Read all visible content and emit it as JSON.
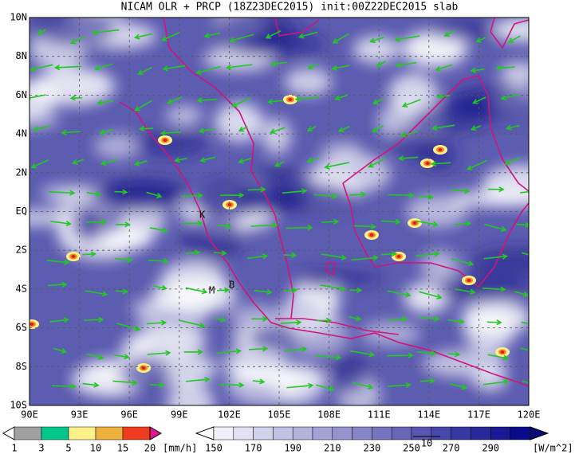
{
  "title": "NICAM OLR + PRCP (18Z23DEC2015) init:00Z22DEC2015 slab",
  "map": {
    "lat_labels": [
      "10N",
      "8N",
      "6N",
      "4N",
      "2N",
      "EQ",
      "2S",
      "4S",
      "6S",
      "8S",
      "10S"
    ],
    "lon_labels": [
      "90E",
      "93E",
      "96E",
      "99E",
      "102E",
      "105E",
      "108E",
      "111E",
      "114E",
      "117E",
      "120E"
    ],
    "markers": [
      "K",
      "M",
      "B"
    ]
  },
  "precip_legend": {
    "labels": [
      "1",
      "3",
      "5",
      "10",
      "15",
      "20"
    ],
    "unit": "[mm/h]"
  },
  "olr_legend": {
    "labels": [
      "150",
      "170",
      "190",
      "210",
      "230",
      "250",
      "270",
      "290"
    ],
    "unit": "[W/m^2]"
  },
  "vector_ref": "10"
}
